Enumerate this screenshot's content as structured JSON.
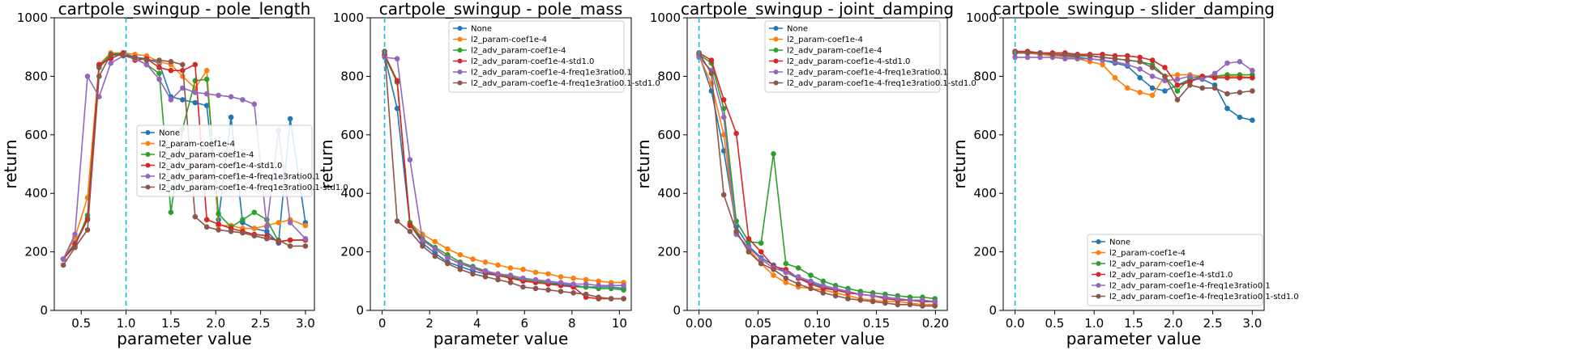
{
  "figure": {
    "ylabel": "return",
    "xlabel": "parameter value"
  },
  "series_names": [
    "None",
    "l2_param-coef1e-4",
    "l2_adv_param-coef1e-4",
    "l2_adv_param-coef1e-4-std1.0",
    "l2_adv_param-coef1e-4-freq1e3ratio0.1",
    "l2_adv_param-coef1e-4-freq1e3ratio0.1-std1.0"
  ],
  "colors": [
    "#1f77b4",
    "#ff7f0e",
    "#2ca02c",
    "#d62728",
    "#9467bd",
    "#8c564b"
  ],
  "chart_data": [
    {
      "type": "line",
      "title": "cartpole_swingup - pole_length",
      "xlabel": "parameter value",
      "ylabel": "return",
      "xlim": [
        0.2,
        3.1
      ],
      "ylim": [
        0,
        1000
      ],
      "xticks": [
        "0.5",
        "1.0",
        "1.5",
        "2.0",
        "2.5",
        "3.0"
      ],
      "yticks": [
        "0",
        "200",
        "400",
        "600",
        "800",
        "1000"
      ],
      "vline": 1.0,
      "legend": "center-right",
      "x": [
        0.3,
        0.43,
        0.57,
        0.7,
        0.83,
        0.97,
        1.1,
        1.23,
        1.37,
        1.5,
        1.63,
        1.77,
        1.9,
        2.03,
        2.17,
        2.3,
        2.43,
        2.57,
        2.7,
        2.83,
        3.0
      ],
      "series": [
        {
          "name": "None",
          "values": [
            175,
            230,
            315,
            830,
            870,
            880,
            865,
            860,
            845,
            730,
            720,
            710,
            700,
            310,
            660,
            300,
            280,
            270,
            230,
            655,
            300
          ]
        },
        {
          "name": "l2_param-coef1e-4",
          "values": [
            175,
            250,
            385,
            840,
            880,
            880,
            875,
            870,
            850,
            840,
            800,
            760,
            820,
            290,
            290,
            280,
            280,
            290,
            300,
            310,
            290
          ]
        },
        {
          "name": "l2_adv_param-coef1e-4",
          "values": [
            175,
            220,
            325,
            835,
            875,
            880,
            860,
            840,
            810,
            335,
            620,
            785,
            790,
            330,
            285,
            310,
            335,
            310,
            235,
            240,
            240
          ]
        },
        {
          "name": "l2_adv_param-coef1e-4-std1.0",
          "values": [
            175,
            225,
            310,
            840,
            860,
            880,
            855,
            860,
            830,
            820,
            820,
            840,
            310,
            295,
            280,
            270,
            260,
            255,
            235,
            240,
            240
          ]
        },
        {
          "name": "l2_adv_param-coef1e-4-freq1e3ratio0.1",
          "values": [
            175,
            260,
            800,
            730,
            845,
            870,
            860,
            840,
            790,
            720,
            760,
            745,
            740,
            735,
            730,
            720,
            705,
            285,
            615,
            300,
            245
          ]
        },
        {
          "name": "l2_adv_param-coef1e-4-freq1e3ratio0.1-std1.0",
          "values": [
            155,
            215,
            275,
            800,
            875,
            870,
            865,
            855,
            855,
            850,
            840,
            320,
            285,
            275,
            270,
            265,
            255,
            245,
            240,
            220,
            220
          ]
        }
      ]
    },
    {
      "type": "line",
      "title": "cartpole_swingup - pole_mass",
      "xlabel": "parameter value",
      "ylabel": "return",
      "xlim": [
        -0.5,
        10.5
      ],
      "ylim": [
        0,
        1000
      ],
      "xticks": [
        "0",
        "2",
        "4",
        "6",
        "8",
        "10"
      ],
      "yticks": [
        "0",
        "200",
        "400",
        "600",
        "800",
        "1000"
      ],
      "vline": 0.1,
      "legend": "top-right",
      "x": [
        0.1,
        0.63,
        1.17,
        1.7,
        2.23,
        2.76,
        3.29,
        3.82,
        4.35,
        4.88,
        5.41,
        5.94,
        6.47,
        7.0,
        7.53,
        8.06,
        8.59,
        9.12,
        9.65,
        10.18
      ],
      "series": [
        {
          "name": "None",
          "values": [
            870,
            690,
            295,
            230,
            195,
            165,
            150,
            135,
            125,
            120,
            110,
            105,
            100,
            95,
            90,
            85,
            80,
            80,
            80,
            75
          ]
        },
        {
          "name": "l2_param-coef1e-4",
          "values": [
            870,
            780,
            300,
            260,
            235,
            210,
            190,
            175,
            165,
            155,
            145,
            140,
            130,
            125,
            115,
            110,
            105,
            100,
            95,
            95
          ]
        },
        {
          "name": "l2_adv_param-coef1e-4",
          "values": [
            870,
            780,
            300,
            245,
            215,
            190,
            165,
            150,
            135,
            125,
            115,
            105,
            100,
            95,
            85,
            80,
            80,
            75,
            75,
            70
          ]
        },
        {
          "name": "l2_adv_param-coef1e-4-std1.0",
          "values": [
            875,
            785,
            290,
            240,
            210,
            180,
            160,
            145,
            130,
            120,
            110,
            100,
            95,
            90,
            85,
            80,
            45,
            40,
            40,
            40
          ]
        },
        {
          "name": "l2_adv_param-coef1e-4-freq1e3ratio0.1",
          "values": [
            865,
            860,
            515,
            240,
            210,
            180,
            160,
            145,
            135,
            125,
            120,
            110,
            105,
            100,
            95,
            90,
            90,
            85,
            85,
            85
          ]
        },
        {
          "name": "l2_adv_param-coef1e-4-freq1e3ratio0.1-std1.0",
          "values": [
            885,
            305,
            270,
            220,
            185,
            160,
            140,
            125,
            115,
            105,
            95,
            80,
            75,
            70,
            65,
            60,
            55,
            45,
            40,
            40
          ]
        }
      ]
    },
    {
      "type": "line",
      "title": "cartpole_swingup - joint_damping",
      "xlabel": "parameter value",
      "ylabel": "return",
      "xlim": [
        -0.01,
        0.21
      ],
      "ylim": [
        0,
        1000
      ],
      "xticks": [
        "0.00",
        "0.05",
        "0.10",
        "0.15",
        "0.20"
      ],
      "yticks": [
        "0",
        "200",
        "400",
        "600",
        "800",
        "1000"
      ],
      "vline": 0.0,
      "legend": "top-right",
      "x": [
        0.0,
        0.0105,
        0.021,
        0.0315,
        0.042,
        0.0525,
        0.063,
        0.0735,
        0.084,
        0.0945,
        0.105,
        0.1155,
        0.126,
        0.1365,
        0.147,
        0.1575,
        0.168,
        0.1785,
        0.189,
        0.1995
      ],
      "series": [
        {
          "name": "None",
          "values": [
            875,
            750,
            545,
            285,
            220,
            180,
            155,
            130,
            110,
            95,
            80,
            70,
            60,
            55,
            50,
            45,
            40,
            35,
            30,
            30
          ]
        },
        {
          "name": "l2_param-coef1e-4",
          "values": [
            870,
            775,
            600,
            265,
            210,
            160,
            120,
            95,
            80,
            75,
            70,
            60,
            50,
            40,
            35,
            30,
            30,
            25,
            20,
            20
          ]
        },
        {
          "name": "l2_adv_param-coef1e-4",
          "values": [
            875,
            845,
            690,
            305,
            235,
            230,
            535,
            160,
            145,
            120,
            100,
            85,
            75,
            65,
            60,
            55,
            50,
            45,
            45,
            40
          ]
        },
        {
          "name": "l2_adv_param-coef1e-4-std1.0",
          "values": [
            880,
            855,
            720,
            605,
            245,
            200,
            150,
            140,
            110,
            90,
            75,
            70,
            60,
            55,
            50,
            40,
            35,
            35,
            30,
            30
          ]
        },
        {
          "name": "l2_adv_param-coef1e-4-freq1e3ratio0.1",
          "values": [
            865,
            820,
            660,
            260,
            215,
            175,
            145,
            130,
            115,
            100,
            85,
            75,
            65,
            55,
            50,
            45,
            40,
            35,
            35,
            30
          ]
        },
        {
          "name": "l2_adv_param-coef1e-4-freq1e3ratio0.1-std1.0",
          "values": [
            880,
            810,
            395,
            270,
            200,
            160,
            140,
            110,
            90,
            75,
            60,
            50,
            40,
            35,
            30,
            25,
            20,
            20,
            15,
            15
          ]
        }
      ]
    },
    {
      "type": "line",
      "title": "cartpole_swingup - slider_damping",
      "xlabel": "parameter value",
      "ylabel": "return",
      "xlim": [
        -0.15,
        3.15
      ],
      "ylim": [
        0,
        1000
      ],
      "xticks": [
        "0.0",
        "0.5",
        "1.0",
        "1.5",
        "2.0",
        "2.5",
        "3.0"
      ],
      "yticks": [
        "0",
        "200",
        "400",
        "600",
        "800",
        "1000"
      ],
      "vline": 0.0,
      "legend": "bottom-right",
      "x": [
        0.0,
        0.158,
        0.316,
        0.474,
        0.632,
        0.789,
        0.947,
        1.105,
        1.263,
        1.421,
        1.579,
        1.737,
        1.895,
        2.053,
        2.211,
        2.368,
        2.526,
        2.684,
        2.842,
        3.0
      ],
      "series": [
        {
          "name": "None",
          "values": [
            880,
            880,
            875,
            875,
            870,
            865,
            860,
            855,
            845,
            835,
            795,
            760,
            750,
            770,
            790,
            790,
            770,
            690,
            660,
            650
          ]
        },
        {
          "name": "l2_param-coef1e-4",
          "values": [
            880,
            880,
            875,
            870,
            865,
            860,
            850,
            840,
            795,
            760,
            745,
            735,
            800,
            805,
            805,
            800,
            800,
            800,
            800,
            795
          ]
        },
        {
          "name": "l2_adv_param-coef1e-4",
          "values": [
            880,
            880,
            880,
            875,
            875,
            870,
            870,
            865,
            860,
            855,
            850,
            840,
            800,
            750,
            795,
            800,
            800,
            805,
            805,
            805
          ]
        },
        {
          "name": "l2_adv_param-coef1e-4-std1.0",
          "values": [
            885,
            885,
            880,
            880,
            880,
            875,
            875,
            875,
            870,
            870,
            865,
            855,
            830,
            770,
            780,
            800,
            795,
            795,
            795,
            795
          ]
        },
        {
          "name": "l2_adv_param-coef1e-4-freq1e3ratio0.1",
          "values": [
            865,
            865,
            865,
            865,
            860,
            860,
            860,
            855,
            850,
            840,
            825,
            800,
            785,
            790,
            800,
            790,
            810,
            845,
            850,
            820
          ]
        },
        {
          "name": "l2_adv_param-coef1e-4-freq1e3ratio0.1-std1.0",
          "values": [
            880,
            880,
            880,
            875,
            875,
            870,
            870,
            865,
            860,
            855,
            850,
            830,
            800,
            720,
            770,
            760,
            760,
            740,
            745,
            750
          ]
        }
      ]
    }
  ]
}
